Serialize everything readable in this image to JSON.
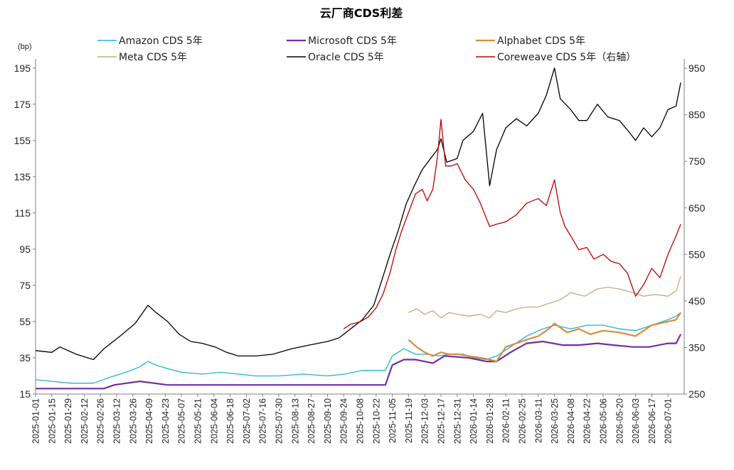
{
  "chart_data": {
    "type": "line",
    "title": "云厂商CDS利差",
    "ylabel_left": "(bp)",
    "ylim_left": [
      15,
      200
    ],
    "yticks_left": [
      15,
      35,
      55,
      75,
      95,
      115,
      135,
      155,
      175,
      195
    ],
    "ylim_right": [
      250,
      970
    ],
    "yticks_right": [
      250,
      350,
      450,
      550,
      650,
      750,
      850,
      950
    ],
    "xlim": [
      "2025-01-01",
      "2026-07-15"
    ],
    "xticks": [
      "2025-01-01",
      "2025-01-15",
      "2025-01-29",
      "2025-02-12",
      "2025-02-26",
      "2025-03-12",
      "2025-03-26",
      "2025-04-09",
      "2025-04-23",
      "2025-05-07",
      "2025-05-21",
      "2025-06-04",
      "2025-06-18",
      "2025-07-02",
      "2025-07-16",
      "2025-07-30",
      "2025-08-13",
      "2025-08-27",
      "2025-09-10",
      "2025-09-24",
      "2025-10-08",
      "2025-10-22",
      "2025-11-05",
      "2025-11-19",
      "2025-12-03",
      "2025-12-17",
      "2025-12-31",
      "2026-01-14",
      "2026-01-28",
      "2026-02-11",
      "2026-02-25",
      "2026-03-11",
      "2026-03-25",
      "2026-04-08",
      "2026-04-22",
      "2026-05-06",
      "2026-05-20",
      "2026-06-03",
      "2026-06-17",
      "2026-07-01"
    ],
    "legend": "top",
    "series": [
      {
        "name": "Amazon CDS 5年",
        "color": "#1fb3d6",
        "axis": "left",
        "x": [
          "2025-01-01",
          "2025-01-15",
          "2025-02-01",
          "2025-02-20",
          "2025-03-05",
          "2025-03-20",
          "2025-04-01",
          "2025-04-08",
          "2025-04-15",
          "2025-04-25",
          "2025-05-07",
          "2025-05-25",
          "2025-06-10",
          "2025-06-25",
          "2025-07-10",
          "2025-07-30",
          "2025-08-20",
          "2025-09-10",
          "2025-09-25",
          "2025-10-10",
          "2025-10-25",
          "2025-10-30",
          "2025-11-05",
          "2025-11-15",
          "2025-11-25",
          "2025-12-05",
          "2025-12-15",
          "2025-12-25",
          "2026-01-05",
          "2026-01-15",
          "2026-01-25",
          "2026-02-03",
          "2026-02-15",
          "2026-03-01",
          "2026-03-15",
          "2026-03-25",
          "2026-04-08",
          "2026-04-22",
          "2026-05-06",
          "2026-05-20",
          "2026-06-03",
          "2026-06-17",
          "2026-07-01",
          "2026-07-08",
          "2026-07-12"
        ],
        "y": [
          23,
          22,
          21,
          21,
          24,
          27,
          30,
          33,
          31,
          29,
          27,
          26,
          27,
          26,
          25,
          25,
          26,
          25,
          26,
          28,
          28,
          28,
          36,
          40,
          37,
          37,
          36,
          37,
          37,
          35,
          34,
          36,
          41,
          47,
          51,
          53,
          51,
          53,
          53,
          51,
          50,
          53,
          56,
          58,
          60
        ]
      },
      {
        "name": "Microsoft CDS 5年",
        "color": "#7030a0",
        "axis": "left",
        "x": [
          "2025-01-01",
          "2025-03-01",
          "2025-03-10",
          "2025-04-01",
          "2025-04-25",
          "2025-05-15",
          "2025-06-15",
          "2025-07-15",
          "2025-08-15",
          "2025-09-15",
          "2025-09-25",
          "2025-10-05",
          "2025-10-30",
          "2025-11-05",
          "2025-11-15",
          "2025-11-25",
          "2025-12-10",
          "2025-12-20",
          "2026-01-10",
          "2026-01-25",
          "2026-02-03",
          "2026-02-15",
          "2026-03-01",
          "2026-03-15",
          "2026-04-01",
          "2026-04-15",
          "2026-05-01",
          "2026-05-15",
          "2026-06-01",
          "2026-06-15",
          "2026-07-01",
          "2026-07-08",
          "2026-07-12"
        ],
        "y": [
          18,
          18,
          20,
          22,
          20,
          20,
          20,
          20,
          20,
          20,
          20,
          20,
          20,
          31,
          34,
          34,
          32,
          36,
          35,
          33,
          33,
          38,
          43,
          44,
          42,
          42,
          43,
          42,
          41,
          41,
          43,
          43,
          48
        ]
      },
      {
        "name": "Alphabet CDS 5年",
        "color": "#d98c3a",
        "axis": "left",
        "x": [
          "2025-11-19",
          "2025-11-26",
          "2025-12-03",
          "2025-12-10",
          "2025-12-17",
          "2025-12-24",
          "2026-01-01",
          "2026-01-10",
          "2026-01-20",
          "2026-01-28",
          "2026-02-03",
          "2026-02-11",
          "2026-02-20",
          "2026-03-01",
          "2026-03-11",
          "2026-03-20",
          "2026-03-25",
          "2026-04-05",
          "2026-04-15",
          "2026-04-25",
          "2026-05-06",
          "2026-05-20",
          "2026-06-03",
          "2026-06-10",
          "2026-06-17",
          "2026-07-01",
          "2026-07-08",
          "2026-07-12"
        ],
        "y": [
          45,
          41,
          38,
          36,
          38,
          37,
          37,
          36,
          35,
          34,
          33,
          41,
          43,
          45,
          47,
          51,
          54,
          49,
          51,
          48,
          50,
          49,
          47,
          50,
          53,
          55,
          56,
          60
        ]
      },
      {
        "name": "Meta CDS 5年",
        "color": "#c8a882",
        "axis": "left",
        "x": [
          "2025-11-19",
          "2025-11-26",
          "2025-12-03",
          "2025-12-10",
          "2025-12-17",
          "2025-12-24",
          "2025-12-31",
          "2026-01-10",
          "2026-01-20",
          "2026-01-28",
          "2026-02-03",
          "2026-02-11",
          "2026-02-20",
          "2026-03-01",
          "2026-03-11",
          "2026-03-20",
          "2026-03-30",
          "2026-04-08",
          "2026-04-20",
          "2026-05-01",
          "2026-05-10",
          "2026-05-20",
          "2026-06-01",
          "2026-06-10",
          "2026-06-20",
          "2026-07-01",
          "2026-07-08",
          "2026-07-12"
        ],
        "y": [
          60,
          62,
          59,
          61,
          57,
          60,
          59,
          58,
          59,
          57,
          61,
          60,
          62,
          63,
          63,
          65,
          67,
          71,
          69,
          73,
          74,
          73,
          71,
          69,
          70,
          69,
          72,
          80
        ]
      },
      {
        "name": "Oracle CDS 5年",
        "color": "#000000",
        "axis": "left",
        "x": [
          "2025-01-01",
          "2025-01-15",
          "2025-01-22",
          "2025-02-05",
          "2025-02-20",
          "2025-03-01",
          "2025-03-15",
          "2025-03-28",
          "2025-04-08",
          "2025-04-15",
          "2025-04-25",
          "2025-05-05",
          "2025-05-15",
          "2025-05-25",
          "2025-06-05",
          "2025-06-15",
          "2025-06-25",
          "2025-07-10",
          "2025-07-25",
          "2025-08-10",
          "2025-08-25",
          "2025-09-10",
          "2025-09-20",
          "2025-09-30",
          "2025-10-10",
          "2025-10-20",
          "2025-10-28",
          "2025-11-03",
          "2025-11-10",
          "2025-11-17",
          "2025-11-24",
          "2025-12-01",
          "2025-12-08",
          "2025-12-14",
          "2025-12-17",
          "2025-12-22",
          "2025-12-31",
          "2026-01-05",
          "2026-01-14",
          "2026-01-22",
          "2026-01-28",
          "2026-02-03",
          "2026-02-11",
          "2026-02-20",
          "2026-03-01",
          "2026-03-11",
          "2026-03-18",
          "2026-03-25",
          "2026-03-30",
          "2026-04-08",
          "2026-04-15",
          "2026-04-22",
          "2026-05-01",
          "2026-05-10",
          "2026-05-20",
          "2026-05-28",
          "2026-06-03",
          "2026-06-10",
          "2026-06-17",
          "2026-06-24",
          "2026-07-01",
          "2026-07-08",
          "2026-07-12"
        ],
        "y": [
          39,
          38,
          41,
          37,
          34,
          40,
          47,
          54,
          64,
          60,
          55,
          48,
          44,
          43,
          41,
          38,
          36,
          36,
          37,
          40,
          42,
          44,
          46,
          51,
          56,
          64,
          80,
          92,
          105,
          120,
          130,
          139,
          145,
          150,
          156,
          143,
          145,
          155,
          160,
          170,
          130,
          150,
          162,
          167,
          163,
          170,
          180,
          195,
          178,
          172,
          166,
          166,
          175,
          168,
          166,
          160,
          155,
          162,
          157,
          162,
          172,
          174,
          187
        ]
      },
      {
        "name": "Coreweave CDS 5年（右轴）",
        "color": "#c00000",
        "axis": "right",
        "x": [
          "2025-09-24",
          "2025-09-30",
          "2025-10-08",
          "2025-10-15",
          "2025-10-22",
          "2025-10-28",
          "2025-11-03",
          "2025-11-08",
          "2025-11-13",
          "2025-11-19",
          "2025-11-25",
          "2025-12-01",
          "2025-12-05",
          "2025-12-10",
          "2025-12-14",
          "2025-12-17",
          "2025-12-21",
          "2025-12-26",
          "2025-12-31",
          "2026-01-07",
          "2026-01-14",
          "2026-01-20",
          "2026-01-28",
          "2026-02-03",
          "2026-02-11",
          "2026-02-20",
          "2026-03-01",
          "2026-03-11",
          "2026-03-18",
          "2026-03-25",
          "2026-03-30",
          "2026-04-03",
          "2026-04-08",
          "2026-04-15",
          "2026-04-22",
          "2026-04-28",
          "2026-05-06",
          "2026-05-13",
          "2026-05-20",
          "2026-05-27",
          "2026-06-03",
          "2026-06-10",
          "2026-06-17",
          "2026-06-24",
          "2026-07-01",
          "2026-07-08",
          "2026-07-12"
        ],
        "y": [
          390,
          400,
          405,
          415,
          435,
          465,
          510,
          560,
          600,
          640,
          680,
          690,
          665,
          690,
          760,
          840,
          740,
          740,
          745,
          710,
          690,
          660,
          610,
          615,
          620,
          635,
          660,
          670,
          655,
          710,
          640,
          610,
          590,
          560,
          565,
          540,
          550,
          535,
          530,
          510,
          460,
          485,
          520,
          500,
          550,
          590,
          615
        ]
      }
    ]
  }
}
